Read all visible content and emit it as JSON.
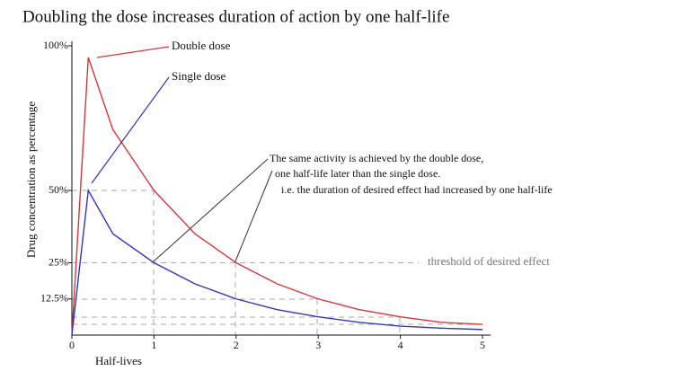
{
  "chart_data": {
    "type": "line",
    "title": "Doubling the dose increases duration of action by one half-life",
    "x_label": "Half-lives",
    "y_label": "Drug concentration as percentage",
    "x": [
      0,
      0.2,
      0.5,
      1,
      1.5,
      2,
      2.5,
      3,
      3.5,
      4,
      4.5,
      5
    ],
    "series": [
      {
        "name": "Double dose",
        "color": "#d0393b",
        "values": [
          0,
          96,
          71,
          50,
          35,
          25,
          17.7,
          12.5,
          8.8,
          6.3,
          4.4,
          3.7
        ]
      },
      {
        "name": "Single dose",
        "color": "#3535b8",
        "values": [
          0,
          50,
          35,
          25,
          17.7,
          12.5,
          8.8,
          6.3,
          4.4,
          3.1,
          2.4,
          1.9
        ]
      }
    ],
    "xlim": [
      0,
      5
    ],
    "ylim": [
      0,
      100
    ],
    "xticks": [
      0,
      1,
      2,
      3,
      4,
      5
    ],
    "yticks": [
      {
        "value": 12.5,
        "label": "12.5%"
      },
      {
        "value": 25,
        "label": "25%"
      },
      {
        "value": 50,
        "label": "50%"
      },
      {
        "value": 100,
        "label": "100%"
      }
    ],
    "annotations": [
      "threshold of desired effect",
      "The same activity is achieved by the double dose,",
      "one half-life later than the single dose.",
      "i.e. the duration of desired effect had increased by one half-life"
    ]
  }
}
